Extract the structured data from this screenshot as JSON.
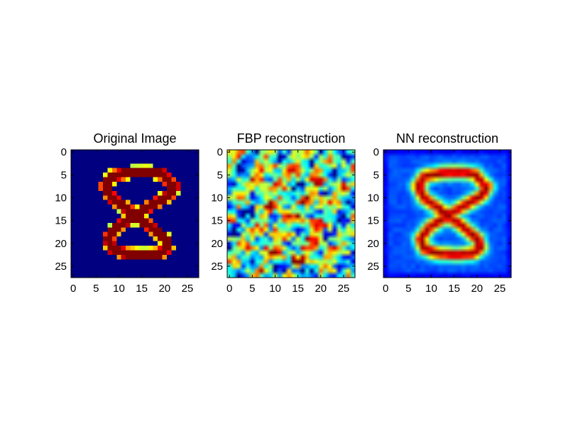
{
  "chart_data": [
    {
      "type": "heatmap",
      "title": "Original Image",
      "colormap": "jet",
      "image_shape": [
        28,
        28
      ],
      "xticks": [
        "0",
        "5",
        "10",
        "15",
        "20",
        "25"
      ],
      "yticks": [
        "0",
        "5",
        "10",
        "15",
        "20",
        "25"
      ],
      "xlim": [
        -0.5,
        27.5
      ],
      "ylim": [
        27.5,
        -0.5
      ],
      "grid": false,
      "legend": "none"
    },
    {
      "type": "heatmap",
      "title": "FBP reconstruction",
      "colormap": "jet",
      "image_shape": [
        28,
        28
      ],
      "xticks": [
        "0",
        "5",
        "10",
        "15",
        "20",
        "25"
      ],
      "yticks": [
        "0",
        "5",
        "10",
        "15",
        "20",
        "25"
      ],
      "xlim": [
        -0.5,
        27.5
      ],
      "ylim": [
        27.5,
        -0.5
      ],
      "grid": false,
      "legend": "none"
    },
    {
      "type": "heatmap",
      "title": "NN reconstruction",
      "colormap": "jet",
      "image_shape": [
        28,
        28
      ],
      "xticks": [
        "0",
        "5",
        "10",
        "15",
        "20",
        "25"
      ],
      "yticks": [
        "0",
        "5",
        "10",
        "15",
        "20",
        "25"
      ],
      "xlim": [
        -0.5,
        27.5
      ],
      "ylim": [
        27.5,
        -0.5
      ],
      "grid": false,
      "legend": "none"
    }
  ]
}
